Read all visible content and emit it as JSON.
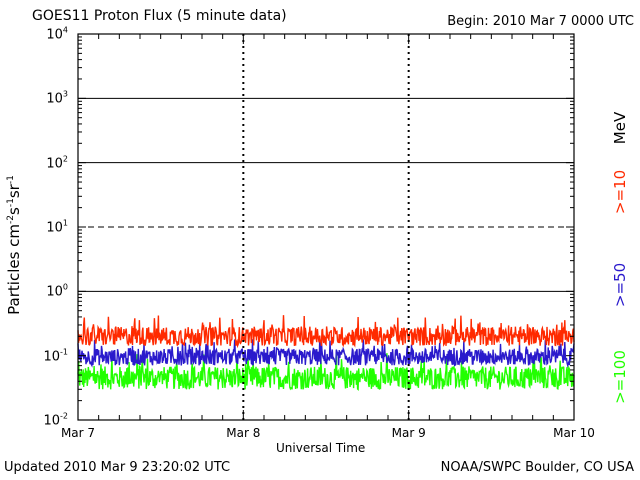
{
  "chart_data": {
    "type": "line",
    "title": "GOES11 Proton Flux (5 minute data)",
    "begin_label": "Begin: 2010 Mar 7 0000 UTC",
    "updated_label": "Updated 2010 Mar  9 23:20:02 UTC",
    "credit_label": "NOAA/SWPC Boulder, CO USA",
    "xlabel": "Universal Time",
    "ylabel_parts": {
      "base": "Particles cm",
      "e1": "-2",
      "t1": "s",
      "e2": "-1",
      "t2": "sr",
      "e3": "-1"
    },
    "x_ticks": [
      "Mar 7",
      "Mar 8",
      "Mar 9",
      "Mar 10"
    ],
    "x_range_days": [
      0,
      3
    ],
    "y_scale": "log",
    "y_range": [
      0.01,
      10000
    ],
    "y_ticks": [
      {
        "base": "10",
        "exp": "-2"
      },
      {
        "base": "10",
        "exp": "-1"
      },
      {
        "base": "10",
        "exp": "0"
      },
      {
        "base": "10",
        "exp": "1"
      },
      {
        "base": "10",
        "exp": "2"
      },
      {
        "base": "10",
        "exp": "3"
      },
      {
        "base": "10",
        "exp": "4"
      }
    ],
    "reference_lines": [
      {
        "value": 1,
        "style": "solid"
      },
      {
        "value": 10,
        "style": "dashed"
      },
      {
        "value": 100,
        "style": "solid"
      },
      {
        "value": 1000,
        "style": "solid"
      }
    ],
    "series": [
      {
        "name": ">=10",
        "color": "#ff2a00",
        "mean": 0.2,
        "spread": 0.15
      },
      {
        "name": ">=50",
        "color": "#2a1acc",
        "mean": 0.095,
        "spread": 0.13
      },
      {
        "name": ">=100",
        "color": "#22ff00",
        "mean": 0.045,
        "spread": 0.18
      }
    ],
    "unit_label": "MeV"
  }
}
